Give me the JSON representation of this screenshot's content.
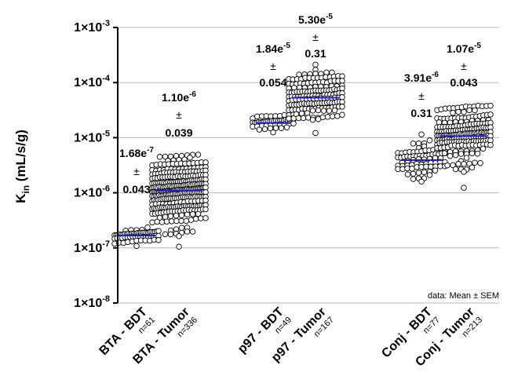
{
  "chart_data": {
    "type": "scatter",
    "y_scale": "log",
    "ylim": [
      1e-08,
      0.001
    ],
    "grid": true,
    "ylabel_main": "K",
    "ylabel_sub": "in",
    "ylabel_unit": " (mL/s/g)",
    "y_ticks": [
      {
        "value": 0.001,
        "mant": "1×10",
        "exp": "-3"
      },
      {
        "value": 0.0001,
        "mant": "1×10",
        "exp": "-4"
      },
      {
        "value": 1e-05,
        "mant": "1×10",
        "exp": "-5"
      },
      {
        "value": 1e-06,
        "mant": "1×10",
        "exp": "-6"
      },
      {
        "value": 1e-07,
        "mant": "1×10",
        "exp": "-7"
      },
      {
        "value": 1e-08,
        "mant": "1×10",
        "exp": "-8"
      }
    ],
    "annotation": "data: Mean ± SEM",
    "mean_line_color": "#1a1adb",
    "groups": [
      {
        "label": "BTA - BDT",
        "n_label": "n=61",
        "n": 61,
        "mean": 1.68e-07,
        "lo": 1e-07,
        "hi": 2.4e-07,
        "mean_base": "1.68e",
        "mean_exp": "-7",
        "pm": "±",
        "sem": "0.043"
      },
      {
        "label": "BTA - Tumor",
        "n_label": "n=336",
        "n": 336,
        "mean": 1.1e-06,
        "lo": 1e-07,
        "hi": 5e-06,
        "mean_base": "1.10e",
        "mean_exp": "-6",
        "pm": "±",
        "sem": "0.039"
      },
      {
        "label": "p97 - BDT",
        "n_label": "n=49",
        "n": 49,
        "mean": 1.84e-05,
        "lo": 1.2e-05,
        "hi": 2.7e-05,
        "mean_base": "1.84e",
        "mean_exp": "-5",
        "pm": "±",
        "sem": "0.054"
      },
      {
        "label": "p97 - Tumor",
        "n_label": "n=167",
        "n": 167,
        "mean": 5.3e-05,
        "lo": 1.2e-05,
        "hi": 0.00022,
        "mean_base": "5.30e",
        "mean_exp": "-5",
        "pm": "±",
        "sem": "0.31"
      },
      {
        "label": "Conj - BDT",
        "n_label": "n=77",
        "n": 77,
        "mean": 3.91e-06,
        "lo": 1.3e-06,
        "hi": 1.2e-05,
        "mean_base": "3.91e",
        "mean_exp": "-6",
        "pm": "±",
        "sem": "0.31"
      },
      {
        "label": "Conj - Tumor",
        "n_label": "n=213",
        "n": 213,
        "mean": 1.07e-05,
        "lo": 1.2e-06,
        "hi": 3.8e-05,
        "mean_base": "1.07e",
        "mean_exp": "-5",
        "pm": "±",
        "sem": "0.043"
      }
    ]
  }
}
